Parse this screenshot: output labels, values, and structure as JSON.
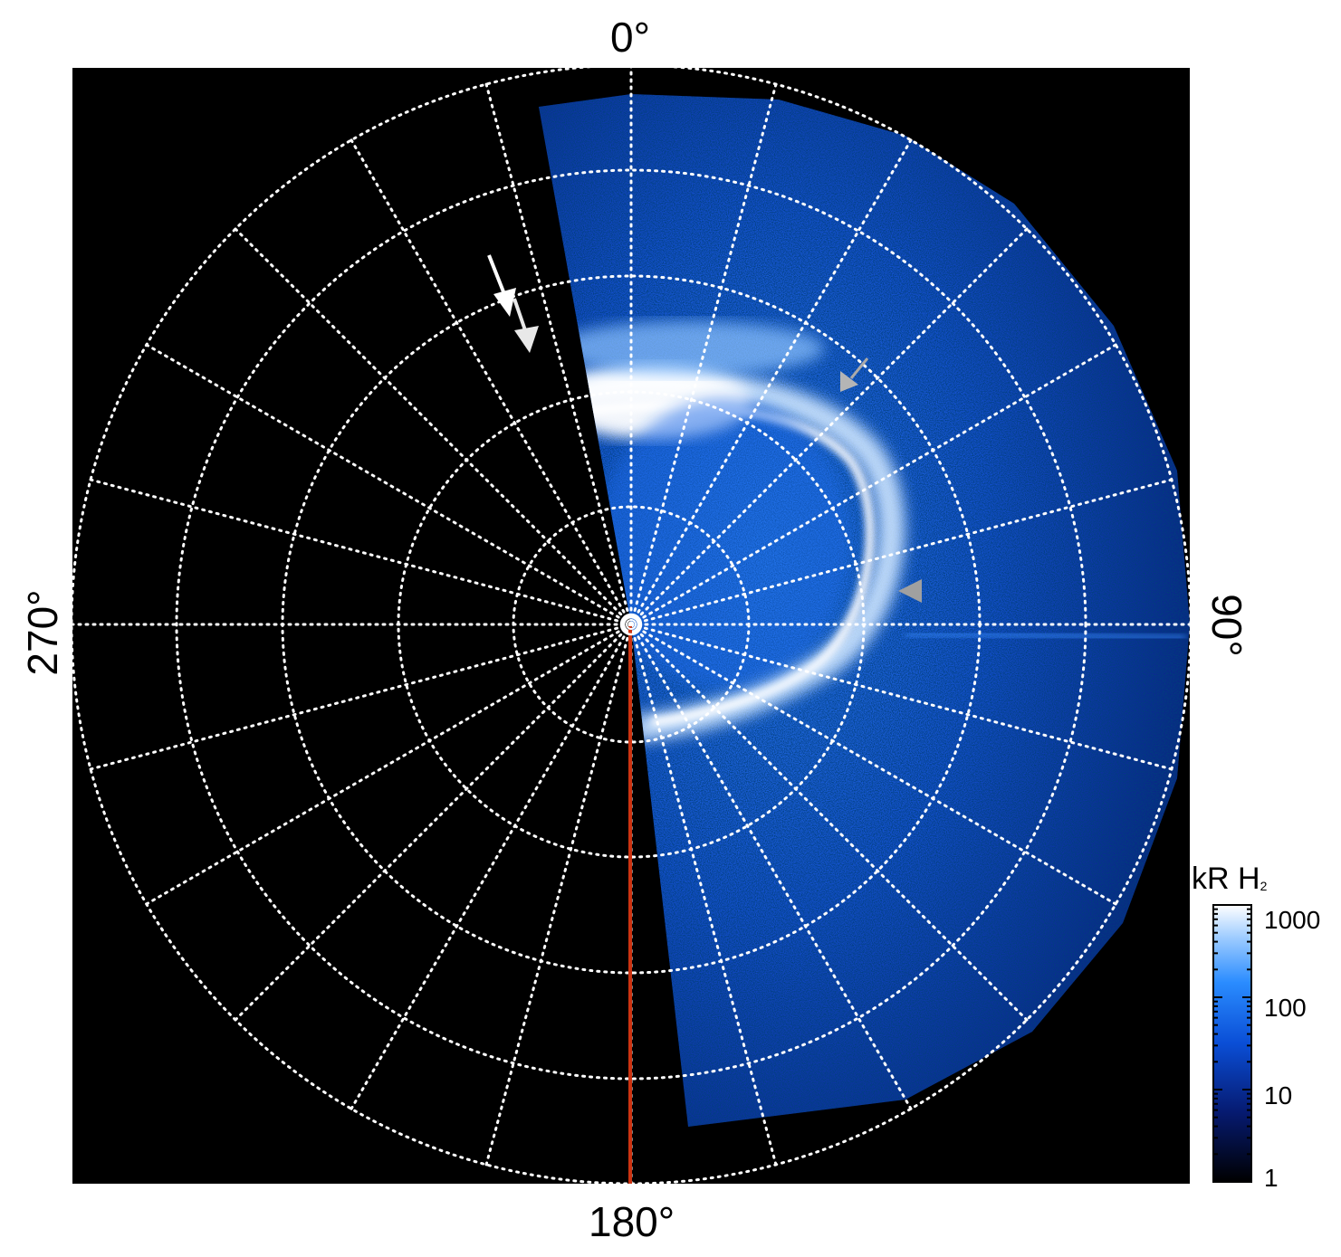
{
  "axis_labels": {
    "top": "0°",
    "right": "90°",
    "bottom": "180°",
    "left": "270°"
  },
  "colorbar": {
    "title_main": "kR H",
    "title_sub": "2",
    "ticks": [
      "1000",
      "100",
      "10",
      "1"
    ]
  },
  "colors": {
    "background": "#000000",
    "grid": "#ffffff",
    "noon_line": "#cc3311",
    "aurora_bright": "#f4f8ff",
    "aurora_mid": "#3a9cff",
    "aurora_dim": "#0a2a8a"
  },
  "annotations": {
    "white_arrows": 2,
    "grey_arrowheads": 2
  }
}
